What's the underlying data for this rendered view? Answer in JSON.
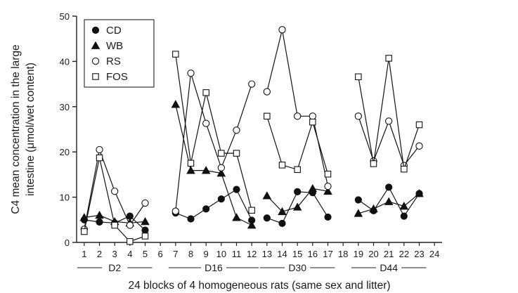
{
  "chart_data": {
    "type": "line",
    "xlabel": "24 blocks of 4 homogeneous rats (same sex and litter)",
    "ylabel_lines": [
      "C4 mean concentration in the large",
      "intestine (μmol/wet content)"
    ],
    "x_ticks": [
      "1",
      "2",
      "3",
      "4",
      "5",
      "6",
      "7",
      "8",
      "9",
      "10",
      "11",
      "12",
      "13",
      "14",
      "15",
      "16",
      "17",
      "18",
      "19",
      "20",
      "21",
      "22",
      "23",
      "24"
    ],
    "ylim": [
      0,
      50
    ],
    "y_ticks": [
      0,
      10,
      20,
      30,
      40,
      50
    ],
    "grid": false,
    "legend_position": "top-left",
    "groups": [
      {
        "label": "D2",
        "blocks": [
          1,
          5
        ]
      },
      {
        "label": "D16",
        "blocks": [
          7,
          12
        ]
      },
      {
        "label": "D30",
        "blocks": [
          13,
          17
        ]
      },
      {
        "label": "D44",
        "blocks": [
          19,
          23
        ]
      }
    ],
    "series": [
      {
        "name": "CD",
        "marker": "filled-circle",
        "segments": [
          [
            [
              1,
              5.0
            ],
            [
              2,
              4.5
            ],
            [
              3,
              4.3
            ],
            [
              4,
              5.8
            ],
            [
              5,
              2.7
            ]
          ],
          [
            [
              7,
              6.5
            ],
            [
              8,
              5.2
            ],
            [
              9,
              7.4
            ],
            [
              10,
              9.6
            ],
            [
              11,
              11.7
            ],
            [
              12,
              4.9
            ]
          ],
          [
            [
              13,
              5.4
            ],
            [
              14,
              4.2
            ],
            [
              15,
              11.2
            ],
            [
              16,
              11.0
            ],
            [
              17,
              5.6
            ]
          ],
          [
            [
              19,
              9.4
            ],
            [
              20,
              7.0
            ],
            [
              21,
              12.2
            ],
            [
              22,
              5.8
            ],
            [
              23,
              10.8
            ]
          ]
        ]
      },
      {
        "name": "WB",
        "marker": "filled-triangle",
        "segments": [
          [
            [
              1,
              5.5
            ],
            [
              2,
              6.0
            ],
            [
              3,
              4.6
            ],
            [
              4,
              4.3
            ],
            [
              5,
              4.6
            ]
          ],
          [
            [
              7,
              30.5
            ],
            [
              8,
              15.9
            ],
            [
              9,
              15.9
            ],
            [
              10,
              15.3
            ],
            [
              11,
              5.5
            ],
            [
              12,
              3.8
            ]
          ],
          [
            [
              13,
              10.3
            ],
            [
              14,
              6.8
            ],
            [
              15,
              7.8
            ],
            [
              16,
              11.9
            ],
            [
              17,
              11.3
            ]
          ],
          [
            [
              19,
              6.4
            ],
            [
              20,
              7.4
            ],
            [
              21,
              9.0
            ],
            [
              22,
              8.0
            ],
            [
              23,
              10.8
            ]
          ]
        ]
      },
      {
        "name": "RS",
        "marker": "open-circle",
        "segments": [
          [
            [
              1,
              2.9
            ],
            [
              2,
              20.5
            ],
            [
              3,
              11.3
            ],
            [
              4,
              3.8
            ],
            [
              5,
              8.7
            ]
          ],
          [
            [
              7,
              6.9
            ],
            [
              8,
              37.4
            ],
            [
              9,
              26.3
            ],
            [
              10,
              16.5
            ],
            [
              11,
              24.8
            ],
            [
              12,
              35.0
            ]
          ],
          [
            [
              13,
              33.3
            ],
            [
              14,
              47.0
            ],
            [
              15,
              27.9
            ],
            [
              16,
              27.9
            ],
            [
              17,
              12.4
            ]
          ],
          [
            [
              19,
              27.9
            ],
            [
              20,
              18.0
            ],
            [
              21,
              26.8
            ],
            [
              22,
              17.0
            ],
            [
              23,
              21.3
            ]
          ]
        ]
      },
      {
        "name": "FOS",
        "marker": "open-square",
        "segments": [
          [
            [
              1,
              2.4
            ],
            [
              2,
              18.7
            ],
            [
              3,
              3.8
            ],
            [
              4,
              0.2
            ],
            [
              5,
              1.4
            ]
          ],
          [
            [
              7,
              41.6
            ],
            [
              8,
              17.5
            ],
            [
              9,
              33.1
            ],
            [
              10,
              19.7
            ],
            [
              11,
              19.7
            ],
            [
              12,
              7.1
            ]
          ],
          [
            [
              13,
              27.9
            ],
            [
              14,
              17.1
            ],
            [
              15,
              16.1
            ],
            [
              16,
              26.6
            ],
            [
              17,
              15.1
            ]
          ],
          [
            [
              19,
              36.6
            ],
            [
              20,
              17.4
            ],
            [
              21,
              40.7
            ],
            [
              22,
              16.2
            ],
            [
              23,
              26.0
            ]
          ]
        ]
      }
    ]
  }
}
